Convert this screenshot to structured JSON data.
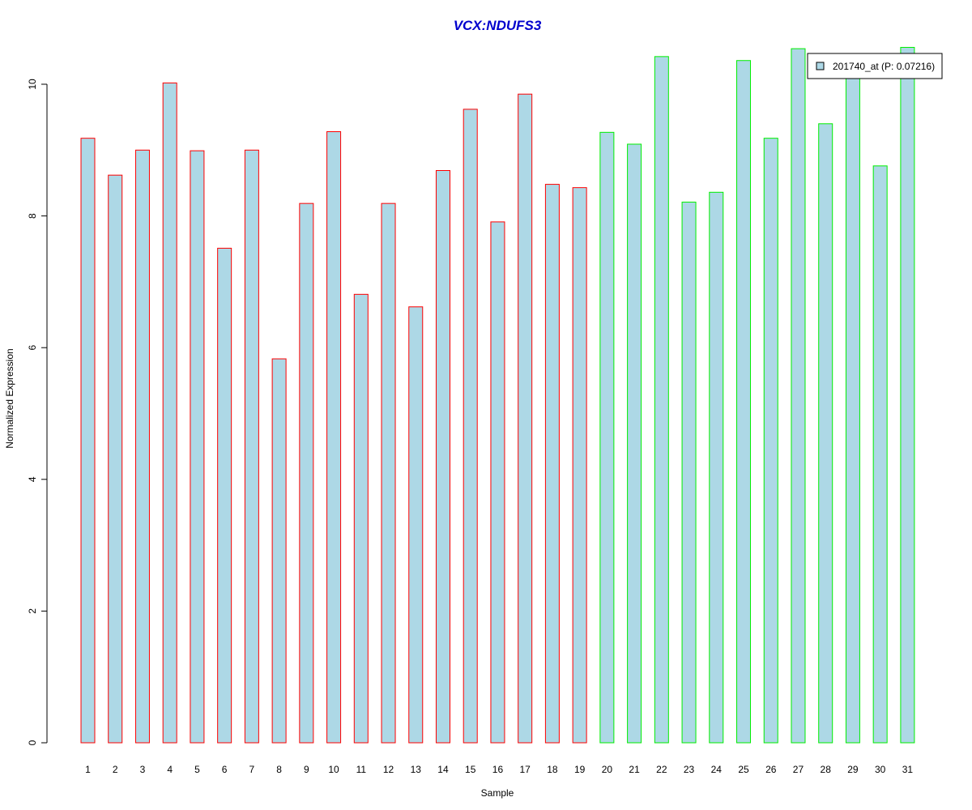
{
  "chart_data": {
    "type": "bar",
    "title": "VCX:NDUFS3",
    "xlabel": "Sample",
    "ylabel": "Normalized Expression",
    "ylim": [
      0,
      10.5
    ],
    "yticks": [
      0,
      2,
      4,
      6,
      8,
      10
    ],
    "categories": [
      "1",
      "2",
      "3",
      "4",
      "5",
      "6",
      "7",
      "8",
      "9",
      "10",
      "11",
      "12",
      "13",
      "14",
      "15",
      "16",
      "17",
      "18",
      "19",
      "20",
      "21",
      "22",
      "23",
      "24",
      "25",
      "26",
      "27",
      "28",
      "29",
      "30",
      "31"
    ],
    "values": [
      9.18,
      8.62,
      9.0,
      10.02,
      8.99,
      7.51,
      9.0,
      5.83,
      8.19,
      9.28,
      6.81,
      8.19,
      6.62,
      8.69,
      9.62,
      7.91,
      9.85,
      8.48,
      8.43,
      9.27,
      9.09,
      10.42,
      8.21,
      8.36,
      10.36,
      9.18,
      10.54,
      9.4,
      10.24,
      8.76,
      10.56
    ],
    "groups": [
      "red",
      "red",
      "red",
      "red",
      "red",
      "red",
      "red",
      "red",
      "red",
      "red",
      "red",
      "red",
      "red",
      "red",
      "red",
      "red",
      "red",
      "red",
      "red",
      "green",
      "green",
      "green",
      "green",
      "green",
      "green",
      "green",
      "green",
      "green",
      "green",
      "green",
      "green"
    ],
    "series": [
      {
        "name": "201740_at (P: 0.07216)",
        "values": [
          9.18,
          8.62,
          9.0,
          10.02,
          8.99,
          7.51,
          9.0,
          5.83,
          8.19,
          9.28,
          6.81,
          8.19,
          6.62,
          8.69,
          9.62,
          7.91,
          9.85,
          8.48,
          8.43,
          9.27,
          9.09,
          10.42,
          8.21,
          8.36,
          10.36,
          9.18,
          10.54,
          9.4,
          10.24,
          8.76,
          10.56
        ]
      }
    ],
    "legend": {
      "label": "201740_at (P: 0.07216)",
      "position": "top-right"
    },
    "grid": false,
    "colors": {
      "fill": "#add8e6",
      "group1_border": "#ff0000",
      "group2_border": "#00ee00",
      "title": "#0000cd"
    }
  }
}
